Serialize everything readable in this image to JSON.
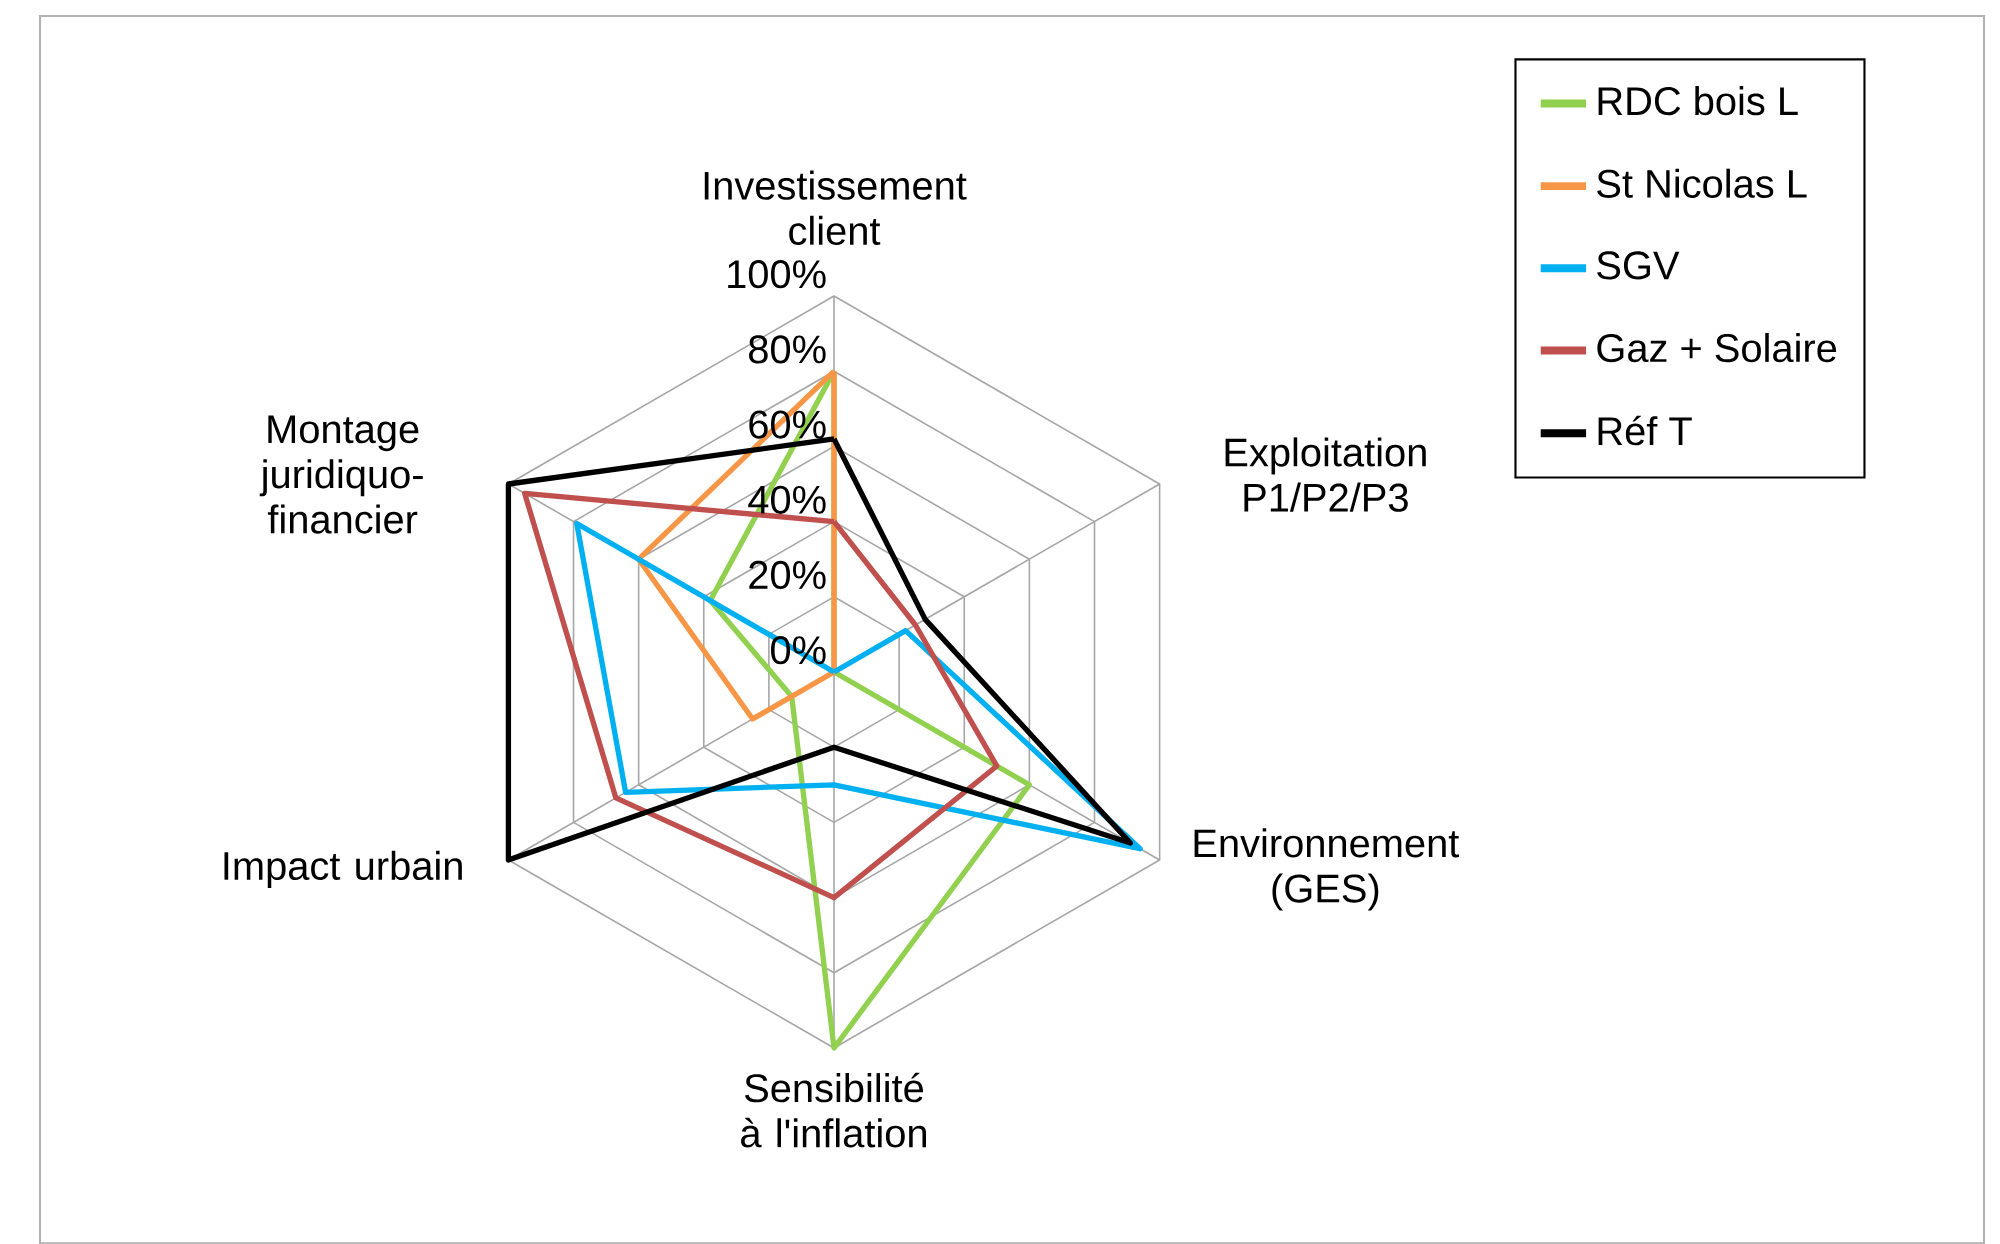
{
  "chart_data": {
    "type": "radar",
    "categories": [
      "Investissement client",
      "Exploitation P1/P2/P3",
      "Environnement (GES)",
      "Sensibilité à l'inflation",
      "Impact urbain",
      "Montage juridiquo-financier"
    ],
    "series": [
      {
        "name": "RDC bois L",
        "color": "#92d050",
        "values": [
          80,
          0,
          60,
          100,
          13,
          38
        ]
      },
      {
        "name": "St Nicolas L",
        "color": "#f79646",
        "values": [
          80,
          0,
          0,
          0,
          25,
          60
        ]
      },
      {
        "name": "SGV",
        "color": "#00b0f0",
        "values": [
          0,
          22,
          94,
          30,
          64,
          79
        ]
      },
      {
        "name": "Gaz + Solaire",
        "color": "#c0504d",
        "values": [
          40,
          25,
          50,
          60,
          67,
          95
        ]
      },
      {
        "name": "Réf T",
        "color": "#000000",
        "values": [
          62,
          28,
          91,
          20,
          100,
          100
        ]
      }
    ],
    "ylim": [
      0,
      100
    ],
    "yticks": [
      {
        "value": 0,
        "label": "0%"
      },
      {
        "value": 20,
        "label": "20%"
      },
      {
        "value": 40,
        "label": "40%"
      },
      {
        "value": 60,
        "label": "60%"
      },
      {
        "value": 80,
        "label": "80%"
      },
      {
        "value": 100,
        "label": "100%"
      }
    ],
    "grid": true,
    "legend": "right",
    "marker": "none",
    "line_style": "solid"
  }
}
